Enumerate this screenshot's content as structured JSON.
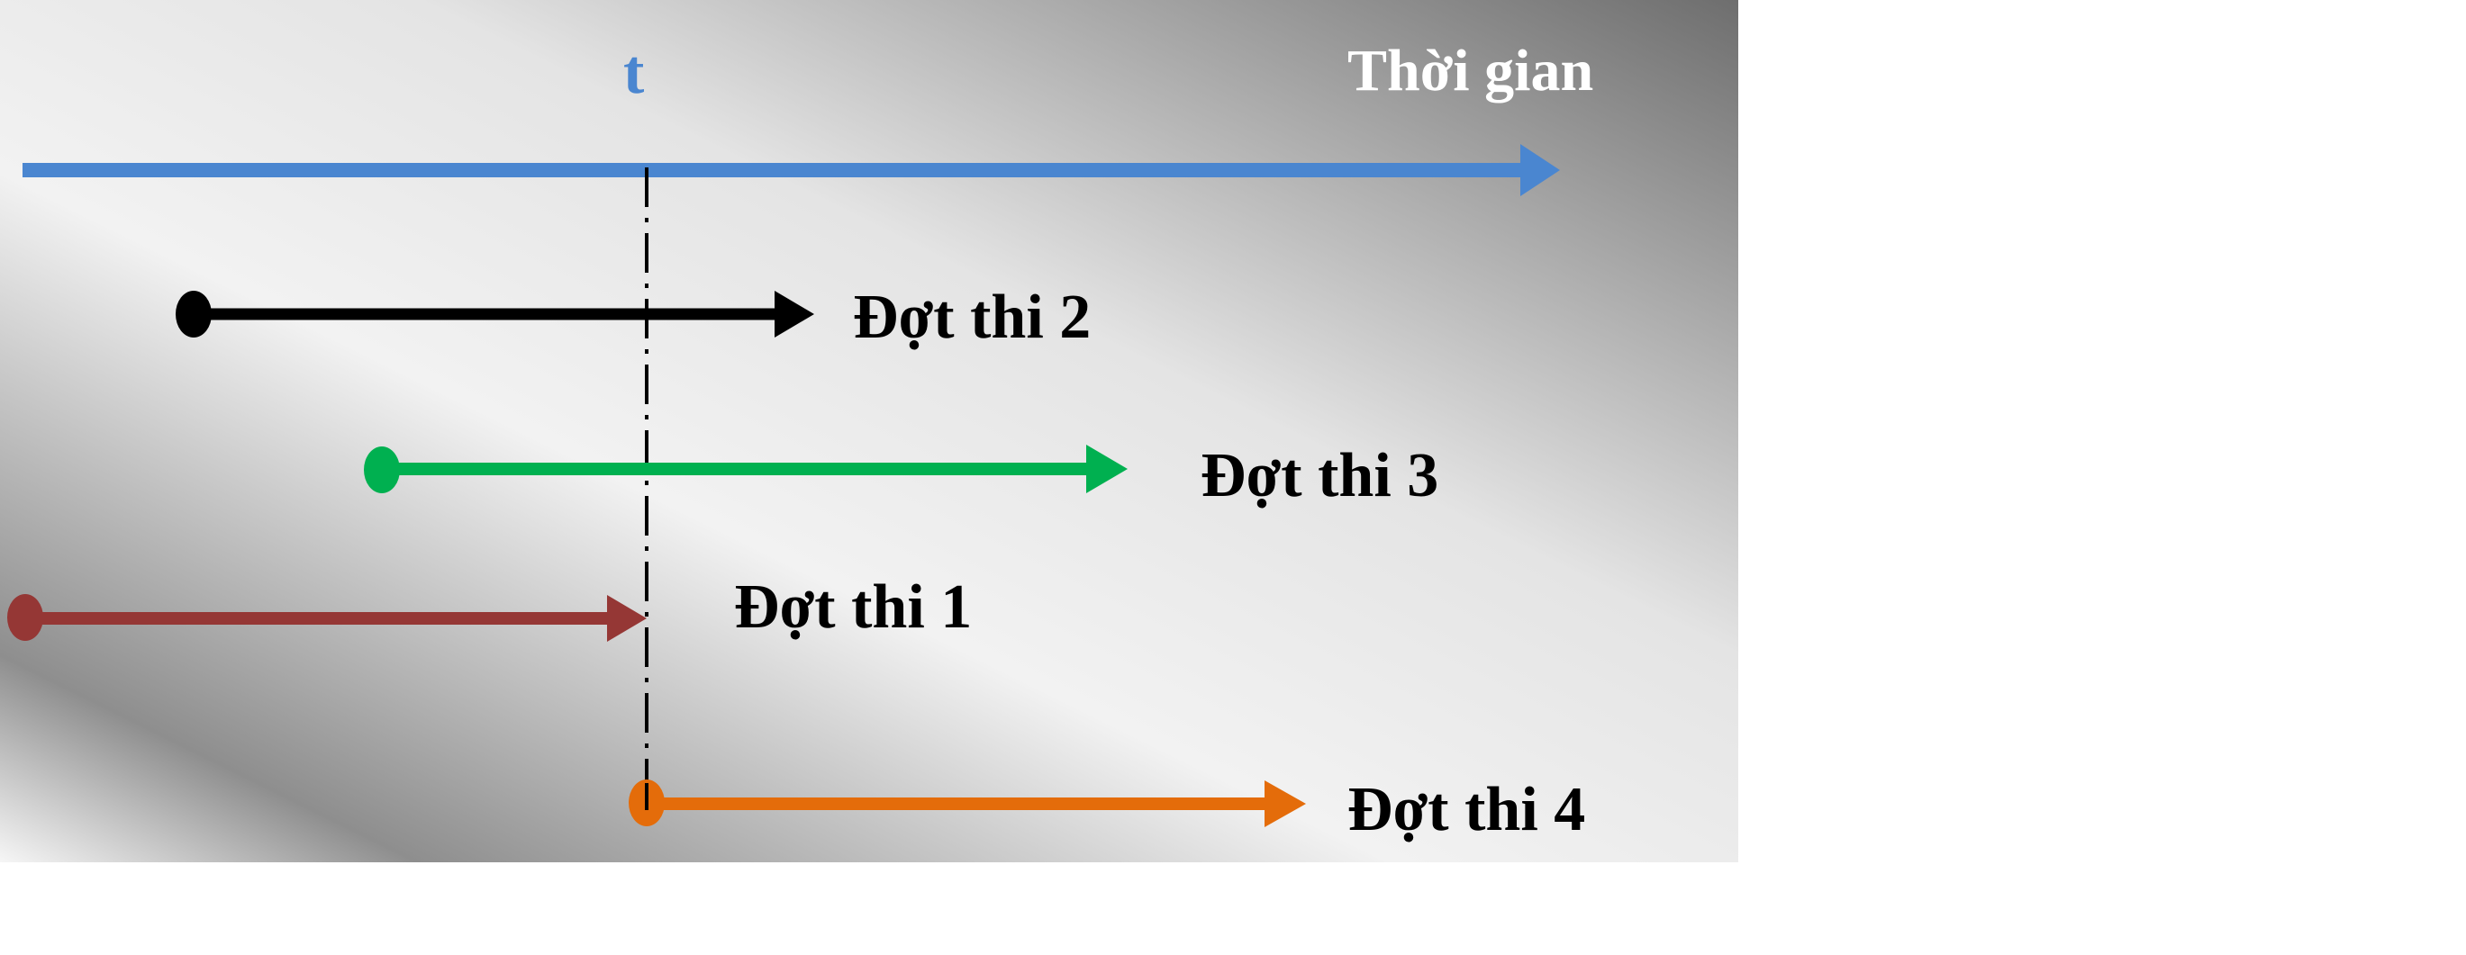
{
  "axis": {
    "label": "Thời gian",
    "marker_label": "t",
    "color": "#4A86D0",
    "label_color": "#FFFFFF"
  },
  "rounds": [
    {
      "id": "round-2",
      "label": "Đợt thi 2",
      "color": "#000000"
    },
    {
      "id": "round-3",
      "label": "Đợt thi 3",
      "color": "#00B050"
    },
    {
      "id": "round-1",
      "label": "Đợt thi 1",
      "color": "#953735"
    },
    {
      "id": "round-4",
      "label": "Đợt thi 4",
      "color": "#E46C0A"
    }
  ],
  "background": {
    "light": "#F4F4F4",
    "dark": "#707070"
  }
}
